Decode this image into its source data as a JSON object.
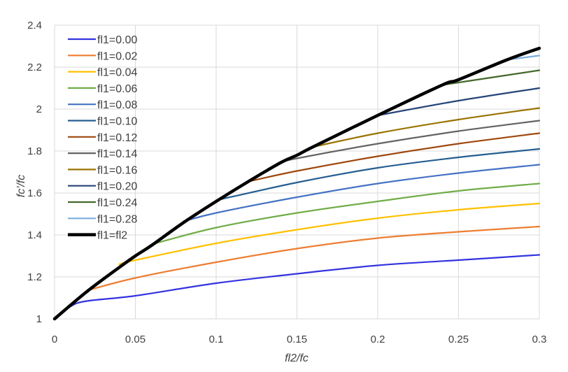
{
  "chart_data": {
    "type": "line",
    "xlabel": "fl2/fc",
    "ylabel": "fc'/fc",
    "xlim": [
      0,
      0.3
    ],
    "ylim": [
      1,
      2.4
    ],
    "x_ticks": [
      "0",
      "0.05",
      "0.1",
      "0.15",
      "0.2",
      "0.25",
      "0.3"
    ],
    "y_ticks": [
      "1",
      "1.2",
      "1.4",
      "1.6",
      "1.8",
      "2",
      "2.2",
      "2.4"
    ],
    "grid": true,
    "legend_position": "top-left",
    "series": [
      {
        "name": "fl1=0.00",
        "color": "#3333e0",
        "width": 2.2,
        "points": [
          [
            0,
            1.0
          ],
          [
            0.01,
            1.06
          ],
          [
            0.02,
            1.085
          ],
          [
            0.05,
            1.11
          ],
          [
            0.1,
            1.17
          ],
          [
            0.15,
            1.215
          ],
          [
            0.2,
            1.255
          ],
          [
            0.25,
            1.28
          ],
          [
            0.3,
            1.305
          ]
        ]
      },
      {
        "name": "fl1=0.02",
        "color": "#ed7d31",
        "width": 2.2,
        "points": [
          [
            0.02,
            1.135
          ],
          [
            0.05,
            1.195
          ],
          [
            0.1,
            1.27
          ],
          [
            0.15,
            1.335
          ],
          [
            0.2,
            1.385
          ],
          [
            0.25,
            1.415
          ],
          [
            0.3,
            1.44
          ]
        ]
      },
      {
        "name": "fl1=0.04",
        "color": "#ffc000",
        "width": 2.2,
        "points": [
          [
            0.04,
            1.26
          ],
          [
            0.05,
            1.28
          ],
          [
            0.1,
            1.36
          ],
          [
            0.15,
            1.425
          ],
          [
            0.2,
            1.48
          ],
          [
            0.25,
            1.52
          ],
          [
            0.3,
            1.55
          ]
        ]
      },
      {
        "name": "fl1=0.06",
        "color": "#70ad47",
        "width": 2.2,
        "points": [
          [
            0.06,
            1.355
          ],
          [
            0.1,
            1.435
          ],
          [
            0.15,
            1.505
          ],
          [
            0.2,
            1.56
          ],
          [
            0.25,
            1.61
          ],
          [
            0.3,
            1.645
          ]
        ]
      },
      {
        "name": "fl1=0.08",
        "color": "#4472c4",
        "width": 2.2,
        "points": [
          [
            0.08,
            1.465
          ],
          [
            0.1,
            1.505
          ],
          [
            0.15,
            1.58
          ],
          [
            0.2,
            1.645
          ],
          [
            0.25,
            1.695
          ],
          [
            0.3,
            1.735
          ]
        ]
      },
      {
        "name": "fl1=0.10",
        "color": "#255e91",
        "width": 2.2,
        "points": [
          [
            0.1,
            1.565
          ],
          [
            0.15,
            1.65
          ],
          [
            0.2,
            1.72
          ],
          [
            0.25,
            1.77
          ],
          [
            0.3,
            1.81
          ]
        ]
      },
      {
        "name": "fl1=0.12",
        "color": "#9e480e",
        "width": 2.2,
        "points": [
          [
            0.12,
            1.655
          ],
          [
            0.15,
            1.705
          ],
          [
            0.2,
            1.775
          ],
          [
            0.25,
            1.835
          ],
          [
            0.3,
            1.885
          ]
        ]
      },
      {
        "name": "fl1=0.14",
        "color": "#636363",
        "width": 2.2,
        "points": [
          [
            0.14,
            1.745
          ],
          [
            0.15,
            1.765
          ],
          [
            0.2,
            1.835
          ],
          [
            0.25,
            1.895
          ],
          [
            0.3,
            1.945
          ]
        ]
      },
      {
        "name": "fl1=0.16",
        "color": "#997300",
        "width": 2.2,
        "points": [
          [
            0.16,
            1.82
          ],
          [
            0.2,
            1.885
          ],
          [
            0.25,
            1.95
          ],
          [
            0.3,
            2.005
          ]
        ]
      },
      {
        "name": "fl1=0.20",
        "color": "#264478",
        "width": 2.2,
        "points": [
          [
            0.2,
            1.97
          ],
          [
            0.25,
            2.04
          ],
          [
            0.3,
            2.1
          ]
        ]
      },
      {
        "name": "fl1=0.24",
        "color": "#43682b",
        "width": 2.2,
        "points": [
          [
            0.24,
            2.115
          ],
          [
            0.27,
            2.15
          ],
          [
            0.3,
            2.185
          ]
        ]
      },
      {
        "name": "fl1=0.28",
        "color": "#7cafdd",
        "width": 2.2,
        "points": [
          [
            0.28,
            2.235
          ],
          [
            0.3,
            2.255
          ]
        ]
      },
      {
        "name": "fl1=fl2",
        "color": "#000000",
        "width": 4.5,
        "points": [
          [
            0,
            1.0
          ],
          [
            0.02,
            1.13
          ],
          [
            0.04,
            1.245
          ],
          [
            0.05,
            1.3
          ],
          [
            0.06,
            1.35
          ],
          [
            0.08,
            1.46
          ],
          [
            0.1,
            1.56
          ],
          [
            0.12,
            1.655
          ],
          [
            0.14,
            1.745
          ],
          [
            0.15,
            1.78
          ],
          [
            0.16,
            1.82
          ],
          [
            0.2,
            1.97
          ],
          [
            0.24,
            2.115
          ],
          [
            0.25,
            2.14
          ],
          [
            0.28,
            2.235
          ],
          [
            0.3,
            2.29
          ]
        ]
      }
    ]
  }
}
